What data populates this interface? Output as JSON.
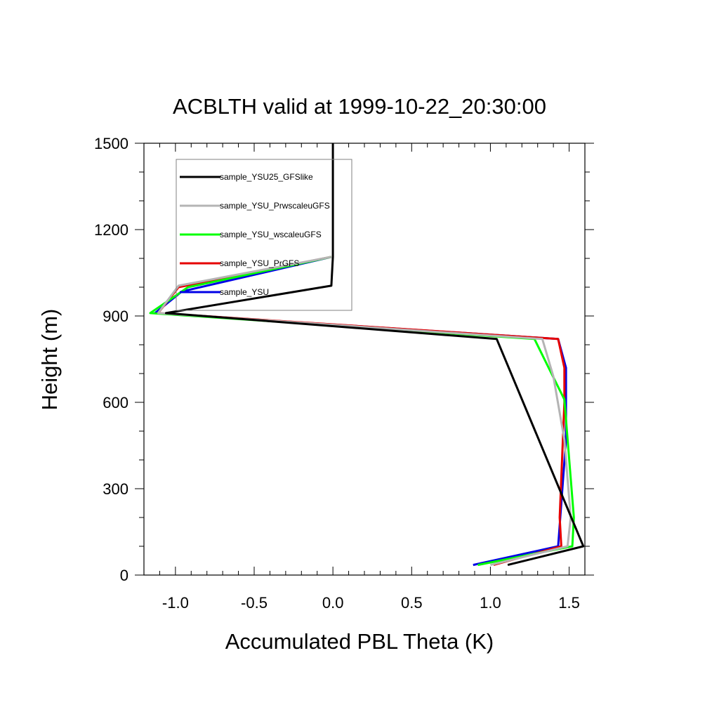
{
  "chart_data": {
    "type": "line",
    "title": "ACBLTH valid at 1999-10-22_20:30:00",
    "xlabel": "Accumulated PBL Theta (K)",
    "ylabel": "Height (m)",
    "xlim": [
      -1.2,
      1.6
    ],
    "ylim": [
      0,
      1500
    ],
    "xticks": [
      -1.0,
      -0.5,
      0.0,
      0.5,
      1.0,
      1.5
    ],
    "xtick_labels": [
      "-1.0",
      "-0.5",
      "0.0",
      "0.5",
      "1.0",
      "1.5"
    ],
    "yticks": [
      0,
      300,
      600,
      900,
      1200,
      1500
    ],
    "ytick_labels": [
      "0",
      "300",
      "600",
      "900",
      "1200",
      "1500"
    ],
    "grid": false,
    "legend_position": "top-left",
    "series": [
      {
        "name": "sample_YSU25_GFSlike",
        "color": "#000000",
        "points": [
          [
            1.11,
            35
          ],
          [
            1.59,
            100
          ],
          [
            1.04,
            820
          ],
          [
            -1.06,
            910
          ],
          [
            -0.01,
            1005
          ],
          [
            0.0,
            1105
          ],
          [
            0.0,
            1500
          ]
        ]
      },
      {
        "name": "sample_YSU_PrwscaleuGFS",
        "color": "#b4b4b4",
        "points": [
          [
            1.0,
            35
          ],
          [
            1.49,
            100
          ],
          [
            1.51,
            200
          ],
          [
            1.47,
            470
          ],
          [
            1.4,
            690
          ],
          [
            1.33,
            820
          ],
          [
            -1.11,
            910
          ],
          [
            -0.98,
            1005
          ],
          [
            -0.01,
            1105
          ]
        ]
      },
      {
        "name": "sample_YSU_wscaleuGFS",
        "color": "#00ff00",
        "points": [
          [
            0.92,
            35
          ],
          [
            1.52,
            100
          ],
          [
            1.53,
            200
          ],
          [
            1.47,
            610
          ],
          [
            1.37,
            720
          ],
          [
            1.28,
            820
          ],
          [
            -1.16,
            910
          ],
          [
            -0.92,
            1000
          ],
          [
            -0.01,
            1105
          ]
        ]
      },
      {
        "name": "sample_YSU_PrGFS",
        "color": "#e60000",
        "points": [
          [
            1.02,
            35
          ],
          [
            1.45,
            100
          ],
          [
            1.44,
            200
          ],
          [
            1.47,
            600
          ],
          [
            1.47,
            720
          ],
          [
            1.43,
            820
          ],
          [
            -1.11,
            910
          ],
          [
            -0.98,
            1000
          ],
          [
            -0.01,
            1105
          ]
        ]
      },
      {
        "name": "sample_YSU",
        "color": "#0000e6",
        "points": [
          [
            0.89,
            35
          ],
          [
            1.43,
            100
          ],
          [
            1.48,
            470
          ],
          [
            1.48,
            720
          ],
          [
            1.43,
            820
          ],
          [
            -1.13,
            910
          ],
          [
            -0.96,
            985
          ],
          [
            -0.01,
            1105
          ]
        ]
      }
    ]
  }
}
